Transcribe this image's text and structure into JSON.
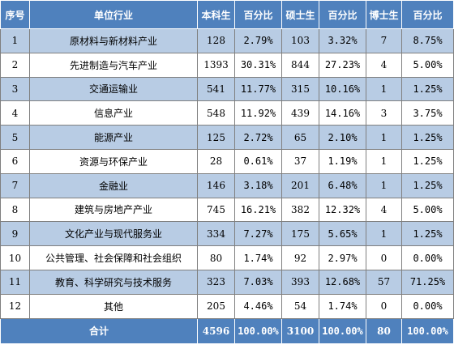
{
  "headers": [
    "序号",
    "单位行业",
    "本科生",
    "百分比",
    "硕士生",
    "百分比",
    "博士生",
    "百分比"
  ],
  "rows": [
    {
      "no": "1",
      "industry": "原材料与新材料产业",
      "bachelor": "128",
      "bachelor_pct": "2.79%",
      "master": "103",
      "master_pct": "3.32%",
      "doctor": "7",
      "doctor_pct": "8.75%"
    },
    {
      "no": "2",
      "industry": "先进制造与汽车产业",
      "bachelor": "1393",
      "bachelor_pct": "30.31%",
      "master": "844",
      "master_pct": "27.23%",
      "doctor": "4",
      "doctor_pct": "5.00%"
    },
    {
      "no": "3",
      "industry": "交通运输业",
      "bachelor": "541",
      "bachelor_pct": "11.77%",
      "master": "315",
      "master_pct": "10.16%",
      "doctor": "1",
      "doctor_pct": "1.25%"
    },
    {
      "no": "4",
      "industry": "信息产业",
      "bachelor": "548",
      "bachelor_pct": "11.92%",
      "master": "439",
      "master_pct": "14.16%",
      "doctor": "3",
      "doctor_pct": "3.75%"
    },
    {
      "no": "5",
      "industry": "能源产业",
      "bachelor": "125",
      "bachelor_pct": "2.72%",
      "master": "65",
      "master_pct": "2.10%",
      "doctor": "1",
      "doctor_pct": "1.25%"
    },
    {
      "no": "6",
      "industry": "资源与环保产业",
      "bachelor": "28",
      "bachelor_pct": "0.61%",
      "master": "37",
      "master_pct": "1.19%",
      "doctor": "1",
      "doctor_pct": "1.25%"
    },
    {
      "no": "7",
      "industry": "金融业",
      "bachelor": "146",
      "bachelor_pct": "3.18%",
      "master": "201",
      "master_pct": "6.48%",
      "doctor": "1",
      "doctor_pct": "1.25%"
    },
    {
      "no": "8",
      "industry": "建筑与房地产产业",
      "bachelor": "745",
      "bachelor_pct": "16.21%",
      "master": "382",
      "master_pct": "12.32%",
      "doctor": "4",
      "doctor_pct": "5.00%"
    },
    {
      "no": "9",
      "industry": "文化产业与现代服务业",
      "bachelor": "334",
      "bachelor_pct": "7.27%",
      "master": "175",
      "master_pct": "5.65%",
      "doctor": "1",
      "doctor_pct": "1.25%"
    },
    {
      "no": "10",
      "industry": "公共管理、社会保障和社会组织",
      "bachelor": "80",
      "bachelor_pct": "1.74%",
      "master": "92",
      "master_pct": "2.97%",
      "doctor": "0",
      "doctor_pct": "0.00%"
    },
    {
      "no": "11",
      "industry": "教育、科学研究与技术服务",
      "bachelor": "323",
      "bachelor_pct": "7.03%",
      "master": "393",
      "master_pct": "12.68%",
      "doctor": "57",
      "doctor_pct": "71.25%"
    },
    {
      "no": "12",
      "industry": "其他",
      "bachelor": "205",
      "bachelor_pct": "4.46%",
      "master": "54",
      "master_pct": "1.74%",
      "doctor": "0",
      "doctor_pct": "0.00%"
    }
  ],
  "total": {
    "label": "合计",
    "bachelor": "4596",
    "bachelor_pct": "100.00%",
    "master": "3100",
    "master_pct": "100.00%",
    "doctor": "80",
    "doctor_pct": "100.00%"
  },
  "colors": {
    "header_bg": "#4f81bd",
    "band_bg": "#b8cce4",
    "header_text": "#ffffff"
  }
}
